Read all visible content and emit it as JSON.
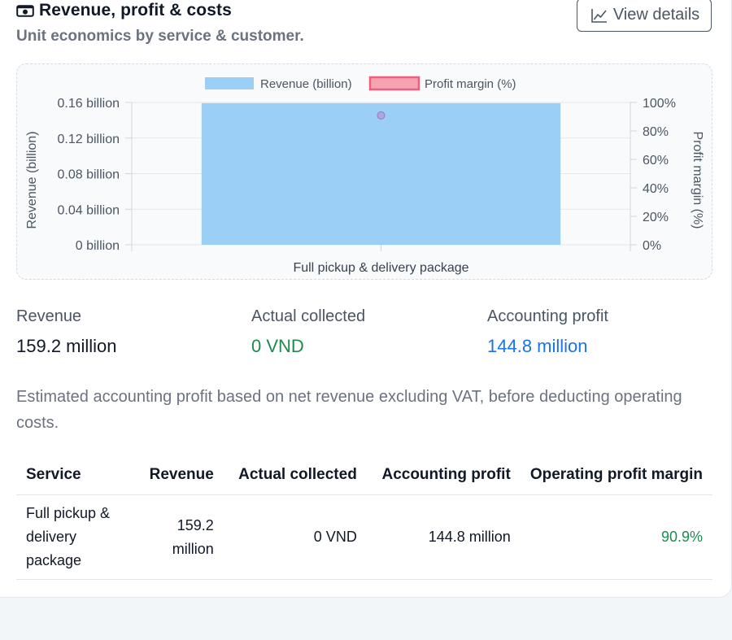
{
  "header": {
    "title": "Revenue, profit & costs",
    "subtitle": "Unit economics by service & customer.",
    "view_details_label": "View details",
    "title_icon": "cash-icon",
    "view_details_icon": "line-chart-icon"
  },
  "chart_data": {
    "type": "bar",
    "categories": [
      "Full pickup & delivery package"
    ],
    "series": [
      {
        "name": "Revenue (billion)",
        "type": "bar",
        "axis": "left",
        "values": [
          0.1592
        ],
        "color": "#9ccff5"
      },
      {
        "name": "Profit margin (%)",
        "type": "scatter",
        "axis": "right",
        "values": [
          90.9
        ],
        "color": "#f4a3b3"
      }
    ],
    "ylabel": "Revenue (billion)",
    "y2label": "Profit margin (%)",
    "ylim": [
      0,
      0.16
    ],
    "y2lim": [
      0,
      100
    ],
    "yticks": [
      "0 billion",
      "0.04 billion",
      "0.08 billion",
      "0.12 billion",
      "0.16 billion"
    ],
    "y2ticks": [
      "0%",
      "20%",
      "40%",
      "60%",
      "80%",
      "100%"
    ],
    "legend_position": "top",
    "grid": true
  },
  "stats": {
    "revenue_label": "Revenue",
    "revenue_value": "159.2 million",
    "collected_label": "Actual collected",
    "collected_value": "0 VND",
    "profit_label": "Accounting profit",
    "profit_value": "144.8 million"
  },
  "note": "Estimated accounting profit based on net revenue excluding VAT, before deducting operating costs.",
  "table": {
    "headers": [
      "Service",
      "Revenue",
      "Actual collected",
      "Accounting profit",
      "Operating profit margin"
    ],
    "rows": [
      [
        "Full pickup & delivery package",
        "159.2 million",
        "0 VND",
        "144.8 million",
        "90.9%"
      ]
    ]
  },
  "colors": {
    "accent_blue": "#1a73e8",
    "positive_green": "#1e8a4c",
    "bar_fill": "#9ccff5",
    "margin_point": "#b39ddb"
  }
}
